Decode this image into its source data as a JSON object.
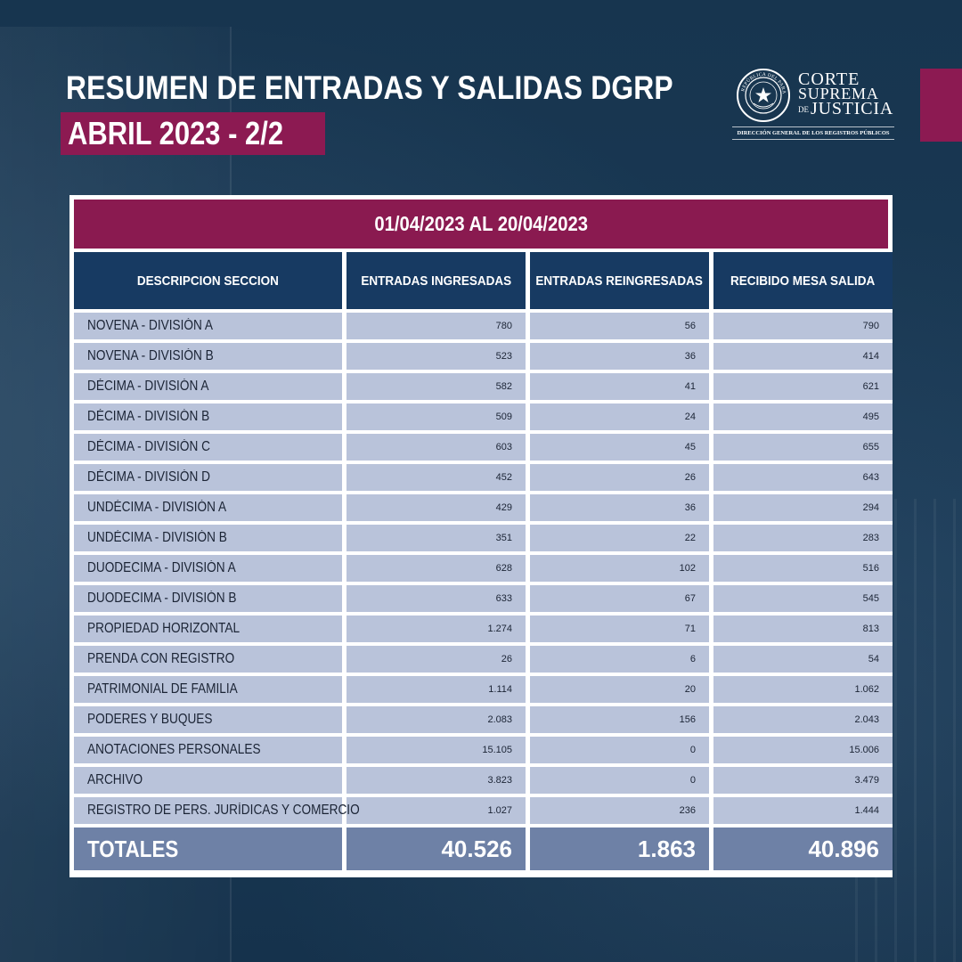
{
  "header": {
    "title": "RESUMEN DE ENTRADAS Y SALIDAS DGRP",
    "subtitle": "ABRIL 2023 - 2/2"
  },
  "logo": {
    "word1": "CORTE",
    "word2": "SUPREMA",
    "word3_prefix": "DE",
    "word3": "JUSTICIA",
    "seal_text": "REPÚBLICA DEL PARAGUAY",
    "sub": "DIRECCIÓN GENERAL DE LOS REGISTROS PÚBLICOS"
  },
  "colors": {
    "background": "#16344f",
    "accent": "#8c1a52",
    "header_cell": "#173a62",
    "row_cell": "#b9c3da",
    "total_cell": "#6e81a6"
  },
  "table": {
    "period": "01/04/2023 AL 20/04/2023",
    "columns": [
      "DESCRIPCION SECCION",
      "ENTRADAS INGRESADAS",
      "ENTRADAS REINGRESADAS",
      "RECIBIDO MESA SALIDA"
    ],
    "rows": [
      [
        "NOVENA - DIVISIÓN A",
        "780",
        "56",
        "790"
      ],
      [
        "NOVENA - DIVISIÓN B",
        "523",
        "36",
        "414"
      ],
      [
        "DÉCIMA - DIVISIÓN A",
        "582",
        "41",
        "621"
      ],
      [
        "DÉCIMA - DIVISIÓN B",
        "509",
        "24",
        "495"
      ],
      [
        "DÉCIMA - DIVISIÓN C",
        "603",
        "45",
        "655"
      ],
      [
        "DÉCIMA - DIVISIÓN D",
        "452",
        "26",
        "643"
      ],
      [
        "UNDÉCIMA - DIVISIÓN A",
        "429",
        "36",
        "294"
      ],
      [
        "UNDÉCIMA - DIVISIÓN B",
        "351",
        "22",
        "283"
      ],
      [
        "DUODECIMA - DIVISIÓN A",
        "628",
        "102",
        "516"
      ],
      [
        "DUODECIMA - DIVISIÓN B",
        "633",
        "67",
        "545"
      ],
      [
        "PROPIEDAD HORIZONTAL",
        "1.274",
        "71",
        "813"
      ],
      [
        "PRENDA CON REGISTRO",
        "26",
        "6",
        "54"
      ],
      [
        "PATRIMONIAL DE FAMILIA",
        "1.114",
        "20",
        "1.062"
      ],
      [
        "PODERES Y BUQUES",
        "2.083",
        "156",
        "2.043"
      ],
      [
        "ANOTACIONES PERSONALES",
        "15.105",
        "0",
        "15.006"
      ],
      [
        "ARCHIVO",
        "3.823",
        "0",
        "3.479"
      ],
      [
        "REGISTRO DE PERS. JURÍDICAS Y COMERCIO",
        "1.027",
        "236",
        "1.444"
      ]
    ],
    "totals": [
      "TOTALES",
      "40.526",
      "1.863",
      "40.896"
    ]
  }
}
